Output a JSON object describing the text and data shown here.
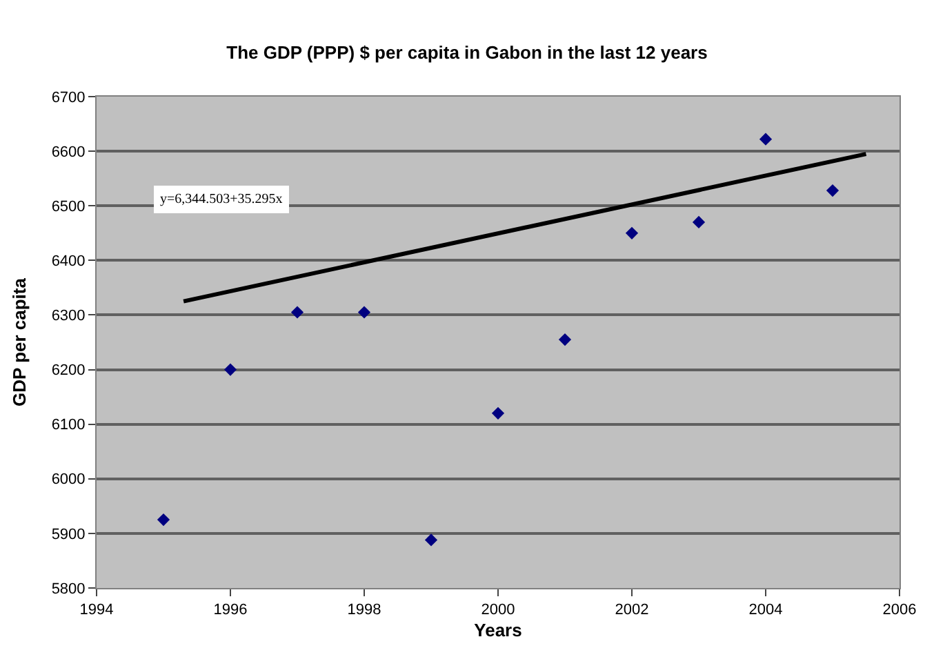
{
  "chart_data": {
    "type": "scatter",
    "title": "The GDP (PPP) $ per capita in Gabon in the last 12 years",
    "xlabel": "Years",
    "ylabel": "GDP per capita",
    "x": [
      1995,
      1996,
      1997,
      1998,
      1999,
      2000,
      2001,
      2002,
      2003,
      2004,
      2005
    ],
    "series": [
      {
        "color": "#000080",
        "marker": "diamond",
        "values": [
          5925,
          6200,
          6305,
          6305,
          5888,
          6120,
          6255,
          6450,
          6470,
          6622,
          6528
        ]
      },
      {
        "type": "line",
        "marker": "none",
        "color": "#000000",
        "x": [
          1995.3,
          2005.5
        ],
        "values": [
          6325,
          6595
        ]
      }
    ],
    "annotations": [
      "y=6,344.503+35.295x"
    ],
    "xlim": [
      1994,
      2006
    ],
    "xticks": [
      1994,
      1996,
      1998,
      2000,
      2002,
      2004,
      2006
    ],
    "ylim": [
      5800,
      6700
    ],
    "yticks": [
      5800,
      5900,
      6000,
      6100,
      6200,
      6300,
      6400,
      6500,
      6600,
      6700
    ],
    "grid": "y",
    "legend": false
  }
}
